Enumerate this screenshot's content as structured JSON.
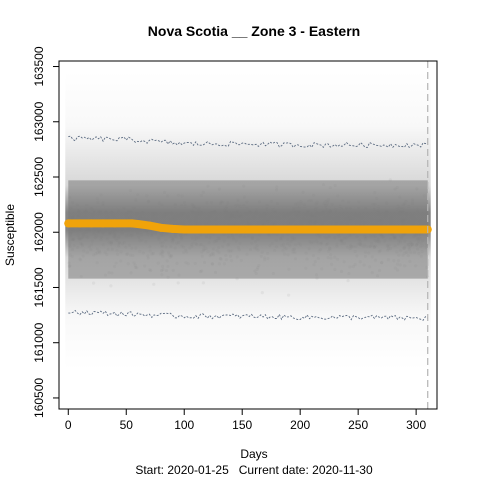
{
  "chart_data": {
    "type": "scatter",
    "title": "Nova Scotia __ Zone 3 - Eastern",
    "xlabel": "Days",
    "ylabel": "Susceptible",
    "xlim": [
      -8,
      318
    ],
    "ylim": [
      160400,
      163550
    ],
    "x_ticks": [
      0,
      50,
      100,
      150,
      200,
      250,
      300
    ],
    "y_ticks": [
      160500,
      161000,
      161500,
      162000,
      162500,
      163000,
      163500
    ],
    "start_label": "Start:",
    "start_date": "2020-01-25",
    "current_label": "Current date:",
    "current_date": "2020-11-30",
    "current_day": 310,
    "series": [
      {
        "role": "simulations",
        "color": "#7a7a7a",
        "center": 162000,
        "dense_band": [
          161580,
          162470
        ],
        "outer_range": [
          160750,
          163450
        ]
      },
      {
        "role": "quantile-bounds",
        "color": "#5a6a80",
        "upper": [
          [
            0,
            162850
          ],
          [
            50,
            162840
          ],
          [
            100,
            162800
          ],
          [
            150,
            162800
          ],
          [
            200,
            162790
          ],
          [
            250,
            162790
          ],
          [
            310,
            162790
          ]
        ],
        "lower": [
          [
            0,
            161280
          ],
          [
            50,
            161260
          ],
          [
            100,
            161240
          ],
          [
            150,
            161240
          ],
          [
            200,
            161230
          ],
          [
            250,
            161230
          ],
          [
            310,
            161220
          ]
        ]
      },
      {
        "role": "mean",
        "color": "#f0a30a",
        "points": [
          [
            0,
            162080
          ],
          [
            10,
            162080
          ],
          [
            20,
            162080
          ],
          [
            30,
            162080
          ],
          [
            40,
            162080
          ],
          [
            55,
            162080
          ],
          [
            60,
            162075
          ],
          [
            70,
            162060
          ],
          [
            80,
            162040
          ],
          [
            90,
            162030
          ],
          [
            100,
            162025
          ],
          [
            150,
            162025
          ],
          [
            200,
            162025
          ],
          [
            250,
            162025
          ],
          [
            300,
            162025
          ],
          [
            310,
            162025
          ]
        ]
      }
    ]
  }
}
